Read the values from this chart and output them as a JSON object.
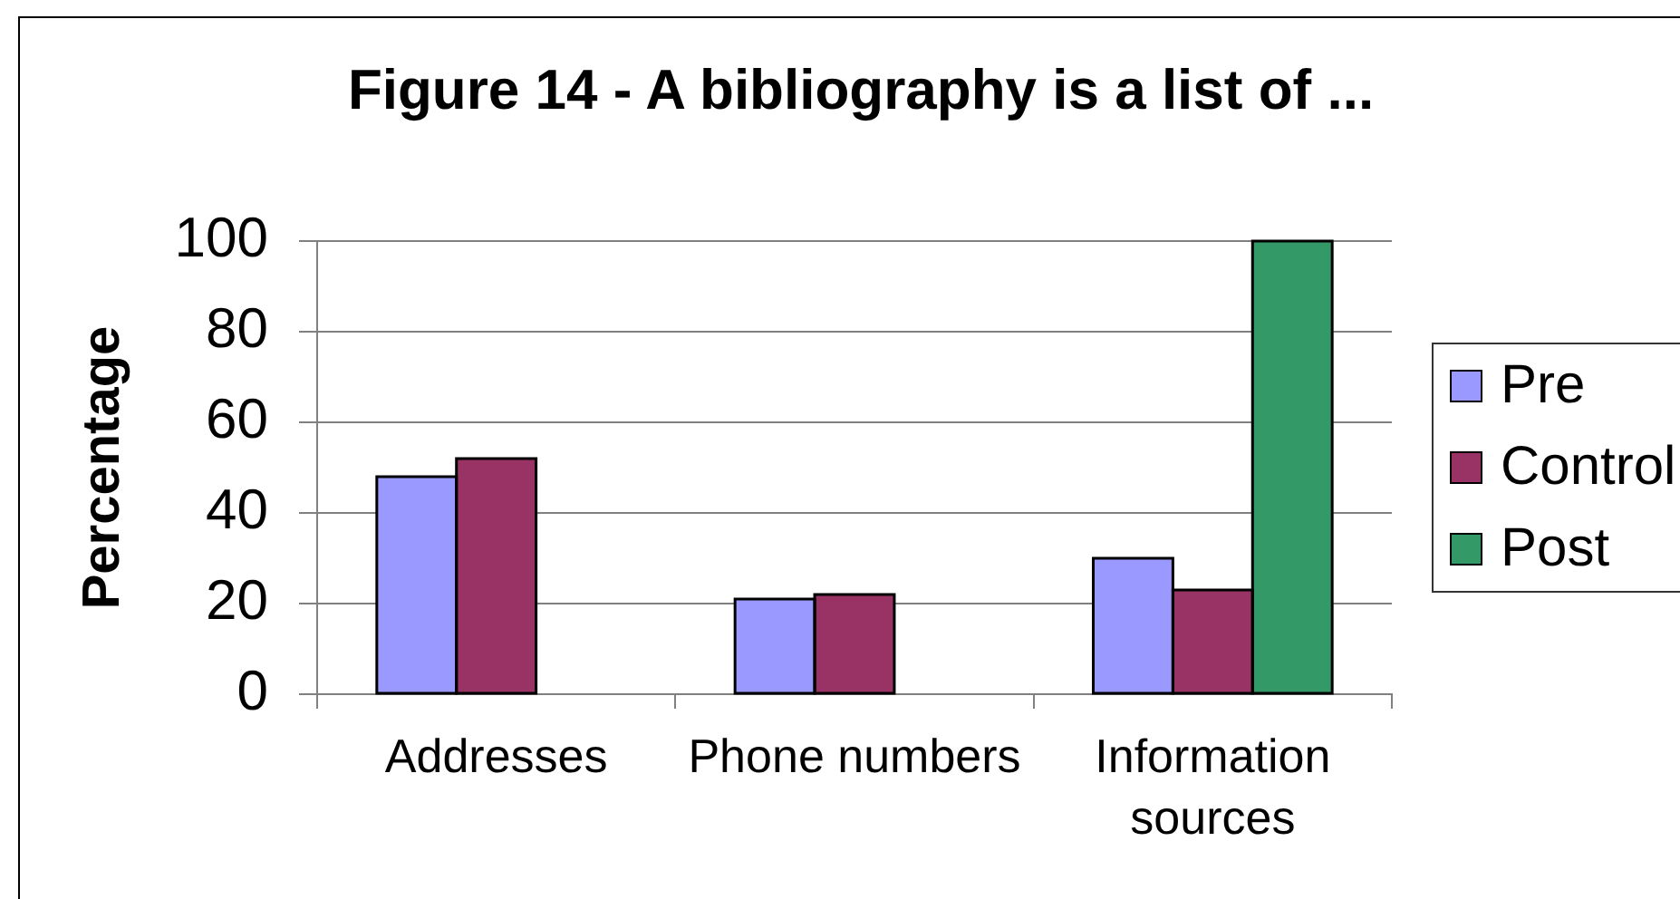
{
  "chart_data": {
    "type": "bar",
    "title": "Figure 14 - A bibliography is a list of ...",
    "ylabel": "Percentage",
    "categories": [
      "Addresses",
      "Phone numbers",
      "Information sources"
    ],
    "series": [
      {
        "name": "Pre",
        "color": "#9999ff",
        "values": [
          48,
          21,
          30
        ]
      },
      {
        "name": "Control",
        "color": "#993366",
        "values": [
          52,
          22,
          23
        ]
      },
      {
        "name": "Post",
        "color": "#339966",
        "values": [
          null,
          null,
          100
        ]
      }
    ],
    "ylim": [
      0,
      100
    ],
    "yticks": [
      0,
      20,
      40,
      60,
      80,
      100
    ],
    "grid": "y",
    "legend": "right"
  }
}
